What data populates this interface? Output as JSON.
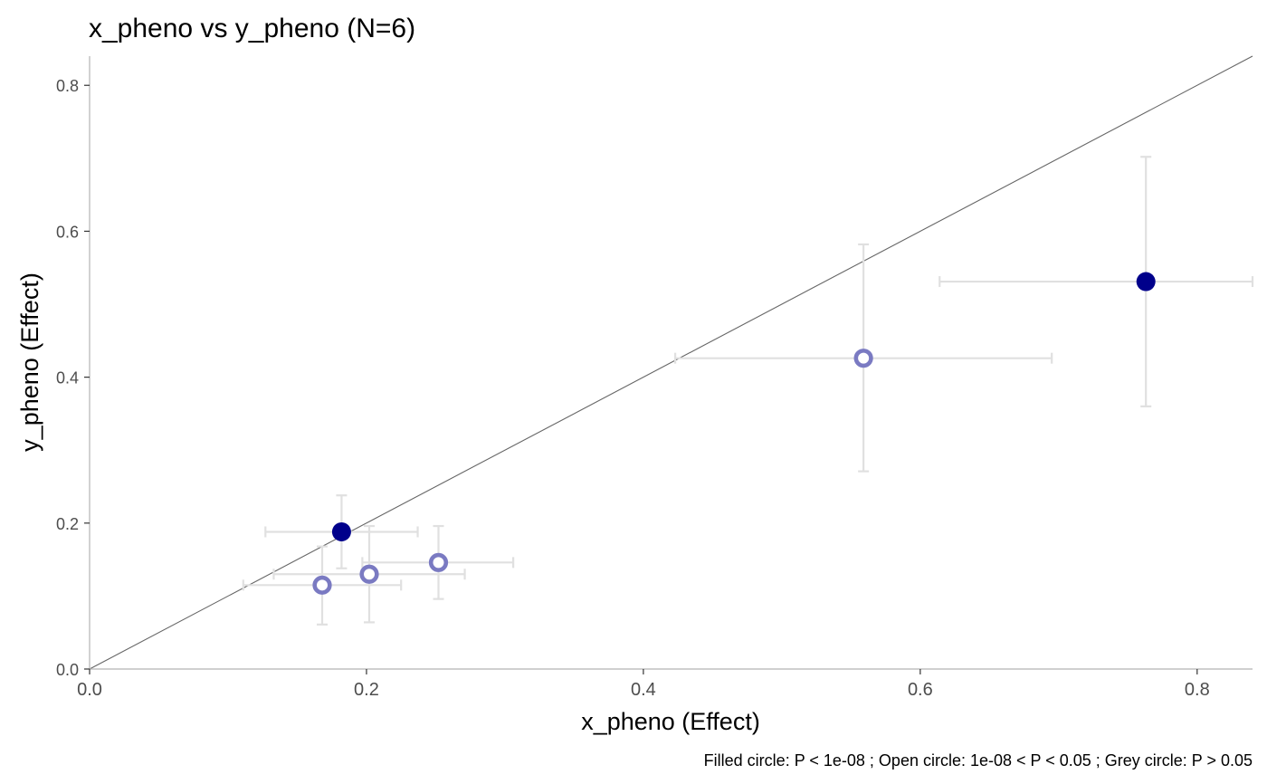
{
  "chart_data": {
    "type": "scatter",
    "title": "x_pheno vs y_pheno (N=6)",
    "xlabel": "x_pheno (Effect)",
    "ylabel": "y_pheno  (Effect)",
    "caption": "Filled circle: P < 1e-08 ; Open circle: 1e-08 < P < 0.05 ; Grey circle: P > 0.05",
    "xlim": [
      0,
      0.84
    ],
    "ylim": [
      0,
      0.84
    ],
    "xticks": [
      "0.0",
      "0.2",
      "0.4",
      "0.6",
      "0.8"
    ],
    "yticks": [
      "0.0",
      "0.2",
      "0.4",
      "0.6",
      "0.8"
    ],
    "grid": false,
    "reference_line": {
      "slope": 1,
      "intercept": 0,
      "color": "#666666"
    },
    "colors": {
      "filled": "#00008b",
      "open": "#7a7ac2",
      "errorbar": "#e0e0e0"
    },
    "points": [
      {
        "x": 0.182,
        "y": 0.188,
        "x_low": 0.127,
        "x_high": 0.237,
        "y_low": 0.138,
        "y_high": 0.238,
        "type": "filled"
      },
      {
        "x": 0.763,
        "y": 0.531,
        "x_low": 0.614,
        "x_high": 0.84,
        "y_low": 0.36,
        "y_high": 0.702,
        "type": "filled"
      },
      {
        "x": 0.559,
        "y": 0.426,
        "x_low": 0.423,
        "x_high": 0.695,
        "y_low": 0.271,
        "y_high": 0.582,
        "type": "open"
      },
      {
        "x": 0.252,
        "y": 0.146,
        "x_low": 0.197,
        "x_high": 0.306,
        "y_low": 0.096,
        "y_high": 0.196,
        "type": "open"
      },
      {
        "x": 0.202,
        "y": 0.13,
        "x_low": 0.133,
        "x_high": 0.271,
        "y_low": 0.064,
        "y_high": 0.196,
        "type": "open"
      },
      {
        "x": 0.168,
        "y": 0.115,
        "x_low": 0.111,
        "x_high": 0.225,
        "y_low": 0.061,
        "y_high": 0.168,
        "type": "open"
      }
    ]
  }
}
